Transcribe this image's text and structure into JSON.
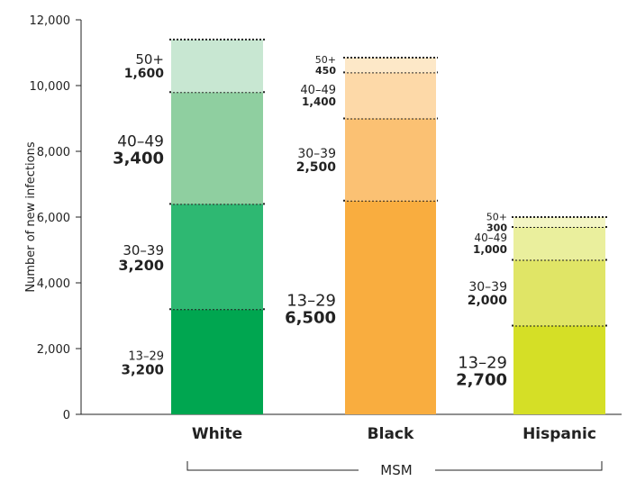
{
  "chart_data": {
    "type": "bar",
    "stacked": true,
    "ylabel": "Number of new infections",
    "ylim": [
      0,
      12000
    ],
    "y_ticks": [
      "0",
      "2,000",
      "4,000",
      "6,000",
      "8,000",
      "10,000",
      "12,000"
    ],
    "y_tick_values": [
      0,
      2000,
      4000,
      6000,
      8000,
      10000,
      12000
    ],
    "group_label": "MSM",
    "categories": [
      {
        "name": "White",
        "segments": [
          {
            "age": "13–29",
            "label": "3,200",
            "value": 3200,
            "color": "#00a650"
          },
          {
            "age": "30–39",
            "label": "3,200",
            "value": 3200,
            "color": "#2eb872"
          },
          {
            "age": "40–49",
            "label": "3,400",
            "value": 3400,
            "color": "#8fcfa0"
          },
          {
            "age": "50+",
            "label": "1,600",
            "value": 1600,
            "color": "#c8e7d2"
          }
        ]
      },
      {
        "name": "Black",
        "segments": [
          {
            "age": "13–29",
            "label": "6,500",
            "value": 6500,
            "color": "#f9ad3f"
          },
          {
            "age": "30–39",
            "label": "2,500",
            "value": 2500,
            "color": "#fbc173"
          },
          {
            "age": "40–49",
            "label": "1,400",
            "value": 1400,
            "color": "#fdd9a8"
          },
          {
            "age": "50+",
            "label": "450",
            "value": 450,
            "color": "#fde8c8"
          }
        ]
      },
      {
        "name": "Hispanic",
        "segments": [
          {
            "age": "13–29",
            "label": "2,700",
            "value": 2700,
            "color": "#d5df26"
          },
          {
            "age": "30–39",
            "label": "2,000",
            "value": 2000,
            "color": "#e0e566"
          },
          {
            "age": "40–49",
            "label": "1,000",
            "value": 1000,
            "color": "#eaef9d"
          },
          {
            "age": "50+",
            "label": "300",
            "value": 300,
            "color": "#f3f5c4"
          }
        ]
      }
    ],
    "grid": false,
    "legend": "none"
  }
}
